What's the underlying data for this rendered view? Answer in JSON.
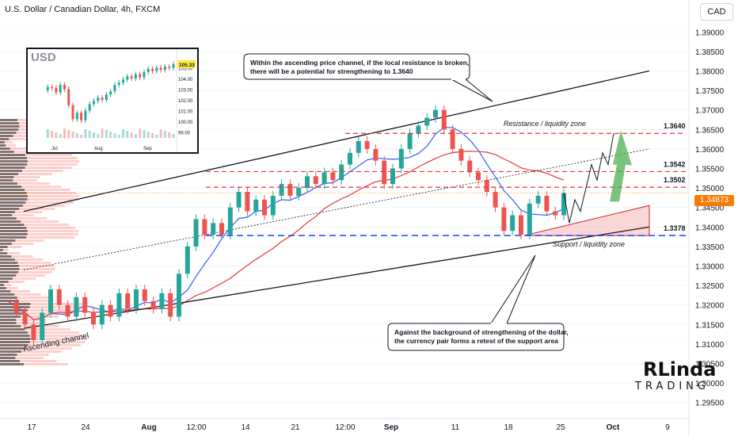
{
  "header": {
    "title": "U.S. Dollar / Canadian Dollar, 4h, FXCM",
    "currency_button": "CAD"
  },
  "chart_data": [
    {
      "type": "line",
      "title": "U.S. Dollar / Canadian Dollar, 4h, FXCM",
      "ylim": [
        1.2925,
        1.3925
      ],
      "y_ticks": [
        "1.39000",
        "1.38500",
        "1.38000",
        "1.37500",
        "1.37000",
        "1.36500",
        "1.36000",
        "1.35500",
        "1.35000",
        "1.34500",
        "1.34000",
        "1.33500",
        "1.33000",
        "1.32500",
        "1.32000",
        "1.31500",
        "1.31000",
        "1.30500",
        "1.30000",
        "1.29500"
      ],
      "x_ticks": [
        "17",
        "24",
        "Aug",
        "12:00",
        "14",
        "21",
        "12:00",
        "Sep",
        "11",
        "18",
        "25",
        "Oct",
        "9"
      ],
      "last_price": "1.34873",
      "price_path": [
        1.321,
        1.318,
        1.315,
        1.311,
        1.318,
        1.324,
        1.32,
        1.317,
        1.322,
        1.318,
        1.315,
        1.32,
        1.317,
        1.323,
        1.319,
        1.324,
        1.321,
        1.319,
        1.323,
        1.317,
        1.328,
        1.335,
        1.342,
        1.338,
        1.341,
        1.338,
        1.345,
        1.349,
        1.344,
        1.347,
        1.343,
        1.348,
        1.351,
        1.348,
        1.35,
        1.353,
        1.351,
        1.354,
        1.352,
        1.356,
        1.359,
        1.362,
        1.36,
        1.357,
        1.351,
        1.355,
        1.36,
        1.364,
        1.366,
        1.368,
        1.37,
        1.365,
        1.36,
        1.357,
        1.354,
        1.352,
        1.349,
        1.345,
        1.339,
        1.343,
        1.338,
        1.346,
        1.348,
        1.344,
        1.343,
        1.3487
      ],
      "forecast_path": [
        1.3487,
        1.341,
        1.347,
        1.344,
        1.35,
        1.356,
        1.352,
        1.359,
        1.356,
        1.364
      ],
      "levels": [
        {
          "label": "1.3640",
          "value": 1.364,
          "style": "dashed-red",
          "tag": "Resistance / liquidity zone"
        },
        {
          "label": "1.3542",
          "value": 1.3542,
          "style": "dashed-red"
        },
        {
          "label": "1.3502",
          "value": 1.3502,
          "style": "dashed-red"
        },
        {
          "label": "1.3378",
          "value": 1.3378,
          "style": "dashed-blue",
          "tag": "Support / liquidity zone"
        }
      ],
      "channel": {
        "label": "Ascending channel"
      },
      "annotations": [
        {
          "id": "top",
          "text1": "Within the ascending price channel, if the local resistance is broken,",
          "text2": "there will be a potential for strengthening to 1.3640"
        },
        {
          "id": "bottom",
          "text1": "Against the background of strengthening of the dollar,",
          "text2": "the currency pair forms a retest of the support area"
        }
      ]
    },
    {
      "type": "line",
      "title": "USD",
      "last_value": "105.33",
      "y_ticks": [
        "105.00",
        "104.00",
        "103.00",
        "102.00",
        "101.00",
        "100.00",
        "99.00"
      ],
      "x_ticks": [
        "Jul",
        "Aug",
        "Sep"
      ],
      "values": [
        102.9,
        103.2,
        103.1,
        102.7,
        103.4,
        103.0,
        101.5,
        100.2,
        100.8,
        100.1,
        101.0,
        101.6,
        101.9,
        102.2,
        102.0,
        102.5,
        102.8,
        103.4,
        103.6,
        103.9,
        104.2,
        104.0,
        104.4,
        104.1,
        104.6,
        104.9,
        104.7,
        105.0,
        104.8,
        105.1,
        105.0,
        105.33
      ]
    }
  ],
  "logo": {
    "line1": "RLinda",
    "line2": "TRADING"
  }
}
